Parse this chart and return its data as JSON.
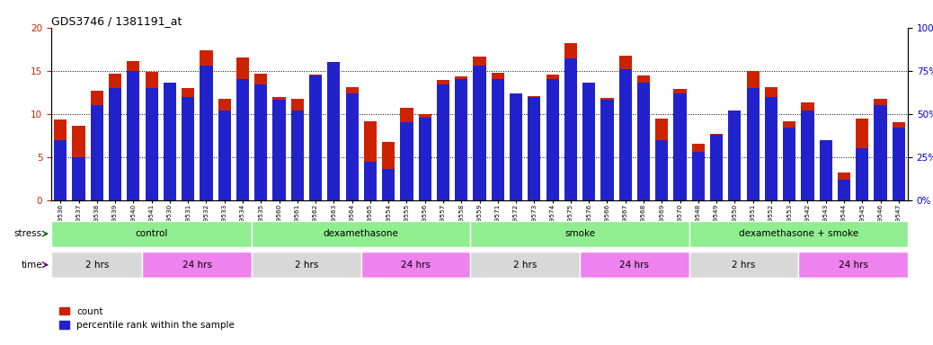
{
  "title": "GDS3746 / 1381191_at",
  "samples": [
    "GSM389536",
    "GSM389537",
    "GSM389538",
    "GSM389539",
    "GSM389540",
    "GSM389541",
    "GSM389530",
    "GSM389531",
    "GSM389532",
    "GSM389533",
    "GSM389534",
    "GSM389535",
    "GSM389560",
    "GSM389561",
    "GSM389562",
    "GSM389563",
    "GSM389564",
    "GSM389565",
    "GSM389554",
    "GSM389555",
    "GSM389556",
    "GSM389557",
    "GSM389558",
    "GSM389559",
    "GSM389571",
    "GSM389572",
    "GSM389573",
    "GSM389574",
    "GSM389575",
    "GSM389576",
    "GSM389566",
    "GSM389567",
    "GSM389568",
    "GSM389569",
    "GSM389570",
    "GSM389548",
    "GSM389549",
    "GSM389550",
    "GSM389551",
    "GSM389552",
    "GSM389553",
    "GSM389542",
    "GSM389543",
    "GSM389544",
    "GSM389545",
    "GSM389546",
    "GSM389547"
  ],
  "count_values": [
    9.3,
    8.6,
    12.7,
    14.7,
    16.1,
    14.9,
    13.6,
    13.0,
    17.4,
    11.7,
    16.5,
    14.7,
    11.9,
    11.7,
    14.6,
    15.8,
    13.1,
    9.1,
    6.7,
    10.7,
    10.0,
    13.9,
    14.3,
    16.6,
    14.8,
    12.1,
    12.1,
    14.6,
    18.2,
    13.4,
    11.8,
    16.7,
    14.4,
    9.5,
    12.9,
    6.5,
    7.7,
    10.1,
    15.0,
    13.1,
    9.1,
    11.3,
    6.8,
    3.2,
    9.5,
    11.7,
    9.0
  ],
  "percentile_values": [
    35,
    25,
    55,
    65,
    75,
    65,
    68,
    60,
    78,
    52,
    70,
    67,
    58,
    52,
    72,
    80,
    62,
    22,
    18,
    45,
    48,
    67,
    70,
    78,
    70,
    62,
    60,
    70,
    82,
    68,
    58,
    76,
    68,
    35,
    62,
    28,
    38,
    52,
    65,
    60,
    42,
    52,
    35,
    12,
    30,
    55,
    42
  ],
  "ylim_left": [
    0,
    20
  ],
  "ylim_right": [
    0,
    100
  ],
  "yticks_left": [
    0,
    5,
    10,
    15,
    20
  ],
  "yticks_right": [
    0,
    25,
    50,
    75,
    100
  ],
  "bar_color_red": "#CC2200",
  "bar_color_blue": "#2222CC",
  "background_color": "#ffffff",
  "stress_groups": [
    {
      "label": "control",
      "start": 0,
      "end": 11
    },
    {
      "label": "dexamethasone",
      "start": 11,
      "end": 23
    },
    {
      "label": "smoke",
      "start": 23,
      "end": 35
    },
    {
      "label": "dexamethasone + smoke",
      "start": 35,
      "end": 47
    }
  ],
  "time_groups": [
    {
      "label": "2 hrs",
      "start": 0,
      "end": 5
    },
    {
      "label": "24 hrs",
      "start": 5,
      "end": 11
    },
    {
      "label": "2 hrs",
      "start": 11,
      "end": 17
    },
    {
      "label": "24 hrs",
      "start": 17,
      "end": 23
    },
    {
      "label": "2 hrs",
      "start": 23,
      "end": 29
    },
    {
      "label": "24 hrs",
      "start": 29,
      "end": 35
    },
    {
      "label": "2 hrs",
      "start": 35,
      "end": 41
    },
    {
      "label": "24 hrs",
      "start": 41,
      "end": 47
    }
  ],
  "stress_row_color": "#90EE90",
  "time_2hrs_color": "#D8D8D8",
  "time_24hrs_color": "#EE82EE",
  "title_fontsize": 9,
  "legend_fontsize": 7.5
}
